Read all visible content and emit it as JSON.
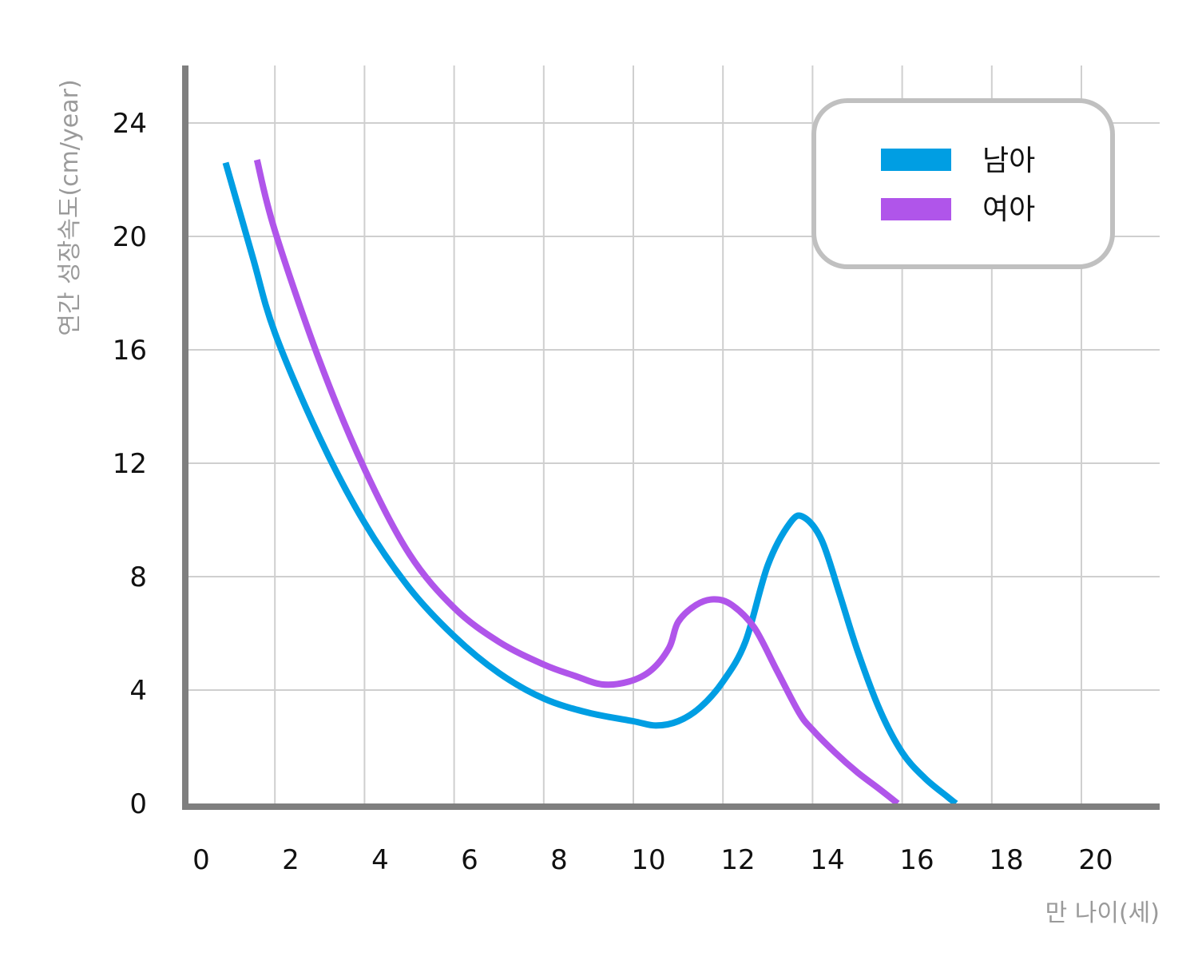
{
  "chart_data": {
    "type": "line",
    "title": "",
    "xlabel": "만 나이(세)",
    "ylabel": "연간 성장속도(cm/year)",
    "xlim": [
      0,
      21.5
    ],
    "ylim": [
      0,
      26
    ],
    "x_ticks": [
      "0",
      "2",
      "4",
      "6",
      "8",
      "10",
      "12",
      "14",
      "16",
      "18",
      "20"
    ],
    "y_ticks": [
      "0",
      "4",
      "8",
      "12",
      "16",
      "20",
      "24"
    ],
    "grid": true,
    "legend_position": "top-right",
    "colors": {
      "boys": "#009ee3",
      "girls": "#b055ea",
      "axis": "#7f7f7f",
      "grid": "#cfcfcf",
      "legend_border": "#c0c0c0"
    },
    "series": [
      {
        "name": "남아",
        "color": "#009ee3",
        "points": [
          [
            0.9,
            22.6
          ],
          [
            1.5,
            19.3
          ],
          [
            2,
            16.6
          ],
          [
            3,
            12.9
          ],
          [
            4,
            9.9
          ],
          [
            5,
            7.6
          ],
          [
            6,
            5.9
          ],
          [
            7,
            4.6
          ],
          [
            8,
            3.7
          ],
          [
            9,
            3.2
          ],
          [
            10,
            2.9
          ],
          [
            10.5,
            2.75
          ],
          [
            11,
            2.9
          ],
          [
            11.5,
            3.4
          ],
          [
            12,
            4.3
          ],
          [
            12.5,
            5.7
          ],
          [
            13,
            8.4
          ],
          [
            13.5,
            9.9
          ],
          [
            13.8,
            10.1
          ],
          [
            14.2,
            9.3
          ],
          [
            14.6,
            7.4
          ],
          [
            15,
            5.4
          ],
          [
            15.5,
            3.3
          ],
          [
            16,
            1.8
          ],
          [
            16.5,
            0.9
          ],
          [
            17,
            0.25
          ],
          [
            17.2,
            0.0
          ]
        ]
      },
      {
        "name": "여아",
        "color": "#b055ea",
        "points": [
          [
            1.6,
            22.7
          ],
          [
            2,
            20.2
          ],
          [
            3,
            15.6
          ],
          [
            4,
            11.8
          ],
          [
            5,
            8.8
          ],
          [
            6,
            6.9
          ],
          [
            7,
            5.7
          ],
          [
            8,
            4.9
          ],
          [
            8.7,
            4.5
          ],
          [
            9.3,
            4.2
          ],
          [
            9.9,
            4.3
          ],
          [
            10.4,
            4.7
          ],
          [
            10.8,
            5.5
          ],
          [
            11,
            6.4
          ],
          [
            11.4,
            7.0
          ],
          [
            11.8,
            7.2
          ],
          [
            12.2,
            7.0
          ],
          [
            12.7,
            6.2
          ],
          [
            13.2,
            4.7
          ],
          [
            13.7,
            3.2
          ],
          [
            14,
            2.6
          ],
          [
            14.5,
            1.8
          ],
          [
            15,
            1.1
          ],
          [
            15.5,
            0.5
          ],
          [
            15.9,
            0.0
          ]
        ]
      }
    ]
  }
}
